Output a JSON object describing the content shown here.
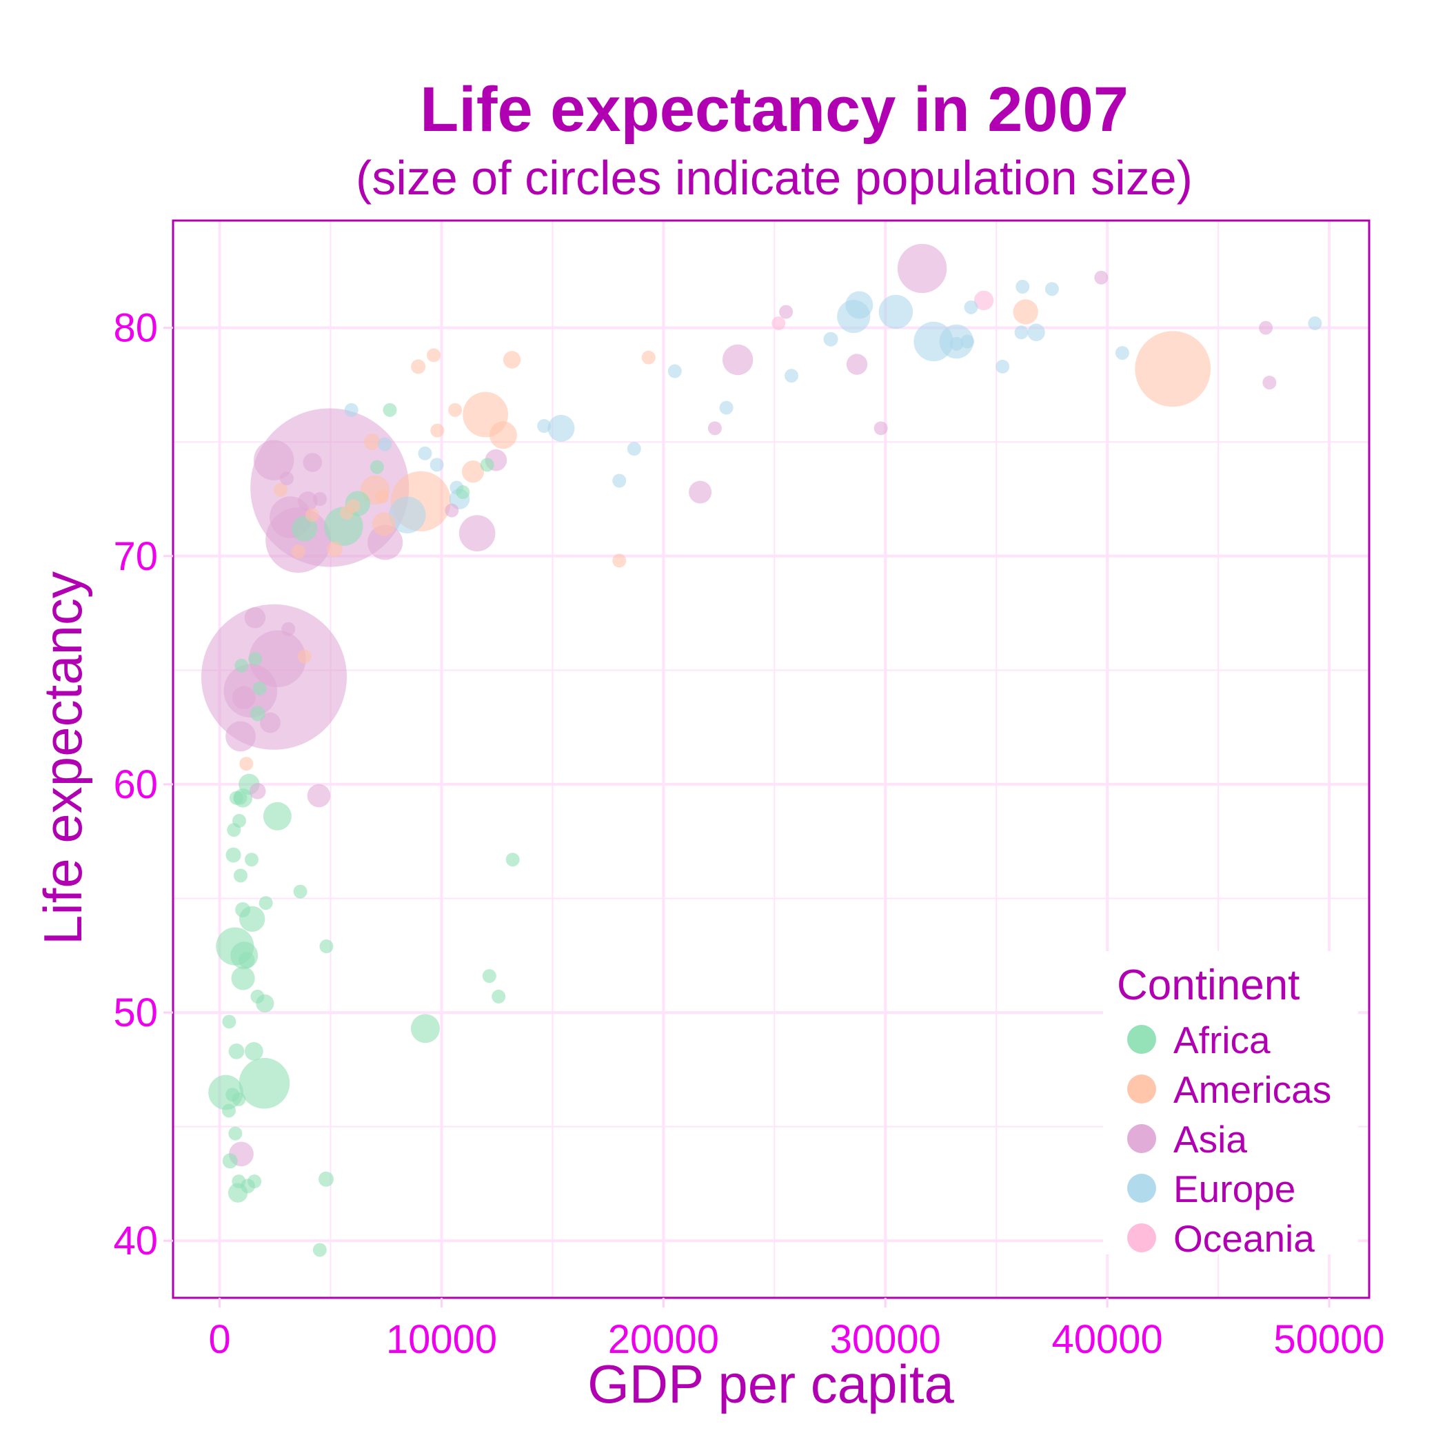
{
  "chart_data": {
    "type": "scatter",
    "title": "Life expectancy in 2007",
    "subtitle": "(size of circles indicate population size)",
    "xlabel": "GDP per capita",
    "ylabel": "Life expectancy",
    "xlim": [
      -2100,
      51800
    ],
    "ylim": [
      37.5,
      84.7
    ],
    "xticks": [
      0,
      10000,
      20000,
      30000,
      40000,
      50000
    ],
    "xtick_labels": [
      "0",
      "10000",
      "20000",
      "30000",
      "40000",
      "50000"
    ],
    "yticks": [
      40,
      50,
      60,
      70,
      80
    ],
    "ytick_labels": [
      "40",
      "50",
      "60",
      "70",
      "80"
    ],
    "grid": true,
    "legend": {
      "title": "Continent",
      "position": "bottom-right"
    },
    "colors": {
      "Africa": "#8fe0b5",
      "Americas": "#ffc3a8",
      "Asia": "#e0a8d6",
      "Europe": "#add8ec",
      "Oceania": "#ffb8d9",
      "frame": "#b100b1",
      "grid": "#ffe3fb"
    },
    "size_note": "population in millions",
    "series": [
      {
        "name": "Africa",
        "points": [
          [
            6223,
            72.3,
            33
          ],
          [
            4797,
            42.7,
            12
          ],
          [
            1441,
            56.7,
            8
          ],
          [
            12570,
            50.7,
            1.6
          ],
          [
            1217,
            52.3,
            14
          ],
          [
            430,
            49.6,
            8
          ],
          [
            2042,
            50.4,
            17
          ],
          [
            706,
            44.7,
            4.4
          ],
          [
            1704,
            50.7,
            10
          ],
          [
            986,
            65.2,
            0.7
          ],
          [
            277,
            46.5,
            64
          ],
          [
            3633,
            55.3,
            3.8
          ],
          [
            1545,
            48.3,
            18
          ],
          [
            2082,
            54.8,
            0.5
          ],
          [
            5581,
            71.3,
            80
          ],
          [
            12154,
            51.6,
            0.6
          ],
          [
            642,
            58.0,
            4.9
          ],
          [
            691,
            52.9,
            76
          ],
          [
            13206,
            56.7,
            1.5
          ],
          [
            753,
            59.4,
            1.7
          ],
          [
            1328,
            60.0,
            23
          ],
          [
            943,
            56.0,
            9.9
          ],
          [
            579,
            46.4,
            1.5
          ],
          [
            1463,
            54.1,
            35
          ],
          [
            1569,
            42.6,
            2.0
          ],
          [
            415,
            45.7,
            3.2
          ],
          [
            12057,
            74.0,
            6.0
          ],
          [
            1045,
            59.4,
            19
          ],
          [
            759,
            48.3,
            13
          ],
          [
            1042,
            54.5,
            12
          ],
          [
            1803,
            64.2,
            3.3
          ],
          [
            10957,
            72.8,
            1.3
          ],
          [
            3820,
            71.2,
            34
          ],
          [
            824,
            42.1,
            20
          ],
          [
            4811,
            52.9,
            2.1
          ],
          [
            620,
            56.9,
            12
          ],
          [
            2014,
            46.9,
            135
          ],
          [
            7670,
            76.4,
            0.8
          ],
          [
            863,
            46.2,
            8.9
          ],
          [
            1598,
            65.5,
            0.2
          ],
          [
            1712,
            63.1,
            12
          ],
          [
            862,
            42.6,
            6.1
          ],
          [
            926,
            59.4,
            5.7
          ],
          [
            9270,
            49.3,
            44
          ],
          [
            2602,
            58.6,
            42
          ],
          [
            4513,
            39.6,
            1.1
          ],
          [
            1107,
            52.5,
            40
          ],
          [
            883,
            58.4,
            5.7
          ],
          [
            7093,
            73.9,
            10
          ],
          [
            1056,
            51.5,
            29
          ],
          [
            1271,
            42.4,
            11
          ],
          [
            470,
            43.5,
            12
          ]
        ]
      },
      {
        "name": "Americas",
        "points": [
          [
            12779,
            75.3,
            40
          ],
          [
            3822,
            65.6,
            9.1
          ],
          [
            9066,
            72.4,
            190
          ],
          [
            36319,
            80.7,
            33
          ],
          [
            13172,
            78.6,
            16
          ],
          [
            7007,
            72.9,
            44
          ],
          [
            9645,
            78.8,
            4.1
          ],
          [
            8948,
            78.3,
            11
          ],
          [
            6025,
            72.2,
            9.3
          ],
          [
            6873,
            75.0,
            14
          ],
          [
            5728,
            71.9,
            6.9
          ],
          [
            5186,
            70.3,
            13
          ],
          [
            1202,
            60.9,
            8.5
          ],
          [
            3548,
            70.2,
            7.5
          ],
          [
            7321,
            72.6,
            2.8
          ],
          [
            11978,
            76.2,
            108
          ],
          [
            2749,
            72.9,
            5.7
          ],
          [
            9809,
            75.5,
            3.2
          ],
          [
            4173,
            71.8,
            6.7
          ],
          [
            7409,
            71.4,
            29
          ],
          [
            19329,
            78.7,
            3.9
          ],
          [
            18009,
            69.8,
            1.1
          ],
          [
            42952,
            78.2,
            301
          ],
          [
            10611,
            76.4,
            3.4
          ],
          [
            11416,
            73.7,
            26
          ]
        ]
      },
      {
        "name": "Asia",
        "points": [
          [
            975,
            43.8,
            32
          ],
          [
            29796,
            75.6,
            0.7
          ],
          [
            1391,
            64.1,
            150
          ],
          [
            1713,
            59.7,
            14
          ],
          [
            4959,
            73.0,
            1319
          ],
          [
            39725,
            82.2,
            6.9
          ],
          [
            2452,
            64.7,
            1110
          ],
          [
            3541,
            70.7,
            224
          ],
          [
            11606,
            71.0,
            69
          ],
          [
            4471,
            59.5,
            28
          ],
          [
            25523,
            80.7,
            6.4
          ],
          [
            31656,
            82.6,
            127
          ],
          [
            4519,
            72.5,
            6.1
          ],
          [
            1593,
            67.3,
            23
          ],
          [
            23348,
            78.6,
            49
          ],
          [
            47307,
            77.6,
            2.5
          ],
          [
            10461,
            72.0,
            4.0
          ],
          [
            12452,
            74.2,
            25
          ],
          [
            3096,
            66.8,
            2.9
          ],
          [
            944,
            62.1,
            48
          ],
          [
            1091,
            63.8,
            28
          ],
          [
            22316,
            75.6,
            3.2
          ],
          [
            2606,
            65.5,
            169
          ],
          [
            3190,
            71.7,
            91
          ],
          [
            21655,
            72.8,
            27
          ],
          [
            47143,
            80.0,
            4.6
          ],
          [
            3970,
            72.4,
            20
          ],
          [
            4185,
            74.1,
            19
          ],
          [
            28718,
            78.4,
            23
          ],
          [
            7458,
            70.6,
            65
          ],
          [
            2442,
            74.2,
            85
          ],
          [
            3025,
            73.4,
            4.0
          ],
          [
            2281,
            62.7,
            22
          ]
        ]
      },
      {
        "name": "Europe",
        "points": [
          [
            5937,
            76.4,
            3.6
          ],
          [
            36126,
            79.8,
            8.2
          ],
          [
            33693,
            79.4,
            10
          ],
          [
            7446,
            74.9,
            4.6
          ],
          [
            10681,
            73.0,
            7.3
          ],
          [
            14619,
            75.7,
            4.5
          ],
          [
            22833,
            76.5,
            10
          ],
          [
            35278,
            78.3,
            5.5
          ],
          [
            33207,
            79.3,
            5.2
          ],
          [
            30470,
            80.7,
            61
          ],
          [
            32170,
            79.4,
            82
          ],
          [
            27538,
            79.5,
            11
          ],
          [
            18009,
            73.3,
            10
          ],
          [
            36181,
            81.8,
            0.3
          ],
          [
            40676,
            78.9,
            4.1
          ],
          [
            28570,
            80.5,
            58
          ],
          [
            9254,
            74.5,
            0.7
          ],
          [
            36798,
            79.8,
            16
          ],
          [
            49357,
            80.2,
            4.6
          ],
          [
            15390,
            75.6,
            38
          ],
          [
            20510,
            78.1,
            10
          ],
          [
            10808,
            72.5,
            22
          ],
          [
            9787,
            74.0,
            10
          ],
          [
            18678,
            74.7,
            5.4
          ],
          [
            25768,
            77.9,
            2.0
          ],
          [
            28821,
            81.0,
            40
          ],
          [
            33860,
            80.9,
            9.0
          ],
          [
            37506,
            81.7,
            7.6
          ],
          [
            8458,
            71.8,
            71
          ],
          [
            33203,
            79.4,
            61
          ]
        ]
      },
      {
        "name": "Oceania",
        "points": [
          [
            34435,
            81.2,
            20
          ],
          [
            25185,
            80.2,
            4.1
          ]
        ]
      }
    ]
  }
}
